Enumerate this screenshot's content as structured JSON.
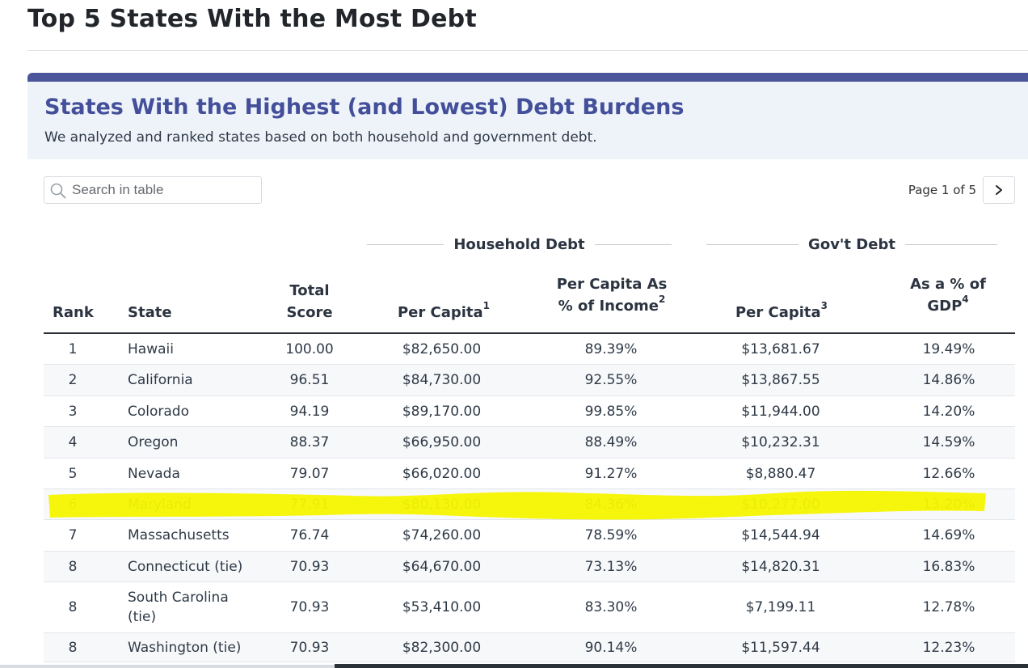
{
  "page": {
    "title": "Top 5 States With the Most Debt"
  },
  "card": {
    "title": "States With the Highest (and Lowest) Debt Burdens",
    "subtitle": "We analyzed and ranked states based on both household and government debt.",
    "accent_color": "#4a5699",
    "header_bg": "#eef3f9"
  },
  "search": {
    "placeholder": "Search in table",
    "value": "",
    "icon": "search-icon"
  },
  "pager": {
    "label": "Page 1 of 5",
    "next_icon": "chevron-right-icon"
  },
  "groups": {
    "household": "Household Debt",
    "gov": "Gov't Debt"
  },
  "columns": {
    "rank": "Rank",
    "state": "State",
    "score_line1": "Total",
    "score_line2": "Score",
    "per_capita": "Per Capita",
    "per_capita_note": "1",
    "income_line1": "Per Capita As",
    "income_line2": "% of Income",
    "income_note": "2",
    "gov_per_capita": "Per Capita",
    "gov_per_capita_note": "3",
    "gdp_line1": "As a % of",
    "gdp_line2": "GDP",
    "gdp_note": "4"
  },
  "rows": [
    {
      "rank": "1",
      "state": "Hawaii",
      "score": "100.00",
      "per_capita": "$82,650.00",
      "pct_income": "89.39%",
      "gov_per_capita": "$13,681.67",
      "pct_gdp": "19.49%"
    },
    {
      "rank": "2",
      "state": "California",
      "score": "96.51",
      "per_capita": "$84,730.00",
      "pct_income": "92.55%",
      "gov_per_capita": "$13,867.55",
      "pct_gdp": "14.86%"
    },
    {
      "rank": "3",
      "state": "Colorado",
      "score": "94.19",
      "per_capita": "$89,170.00",
      "pct_income": "99.85%",
      "gov_per_capita": "$11,944.00",
      "pct_gdp": "14.20%"
    },
    {
      "rank": "4",
      "state": "Oregon",
      "score": "88.37",
      "per_capita": "$66,950.00",
      "pct_income": "88.49%",
      "gov_per_capita": "$10,232.31",
      "pct_gdp": "14.59%"
    },
    {
      "rank": "5",
      "state": "Nevada",
      "score": "79.07",
      "per_capita": "$66,020.00",
      "pct_income": "91.27%",
      "gov_per_capita": "$8,880.47",
      "pct_gdp": "12.66%"
    },
    {
      "rank": "6",
      "state": "Maryland",
      "score": "77.91",
      "per_capita": "$80,130.00",
      "pct_income": "84.36%",
      "gov_per_capita": "$10,277.00",
      "pct_gdp": "13.20%"
    },
    {
      "rank": "7",
      "state": "Massachusetts",
      "score": "76.74",
      "per_capita": "$74,260.00",
      "pct_income": "78.59%",
      "gov_per_capita": "$14,544.94",
      "pct_gdp": "14.69%"
    },
    {
      "rank": "8",
      "state": "Connecticut (tie)",
      "score": "70.93",
      "per_capita": "$64,670.00",
      "pct_income": "73.13%",
      "gov_per_capita": "$14,820.31",
      "pct_gdp": "16.83%"
    },
    {
      "rank": "8",
      "state": "South Carolina (tie)",
      "score": "70.93",
      "per_capita": "$53,410.00",
      "pct_income": "83.30%",
      "gov_per_capita": "$7,199.11",
      "pct_gdp": "12.78%"
    },
    {
      "rank": "8",
      "state": "Washington (tie)",
      "score": "70.93",
      "per_capita": "$82,300.00",
      "pct_income": "90.14%",
      "gov_per_capita": "$11,597.44",
      "pct_gdp": "12.23%"
    }
  ],
  "highlight": {
    "row_rank": "6",
    "color": "#f5f500"
  }
}
